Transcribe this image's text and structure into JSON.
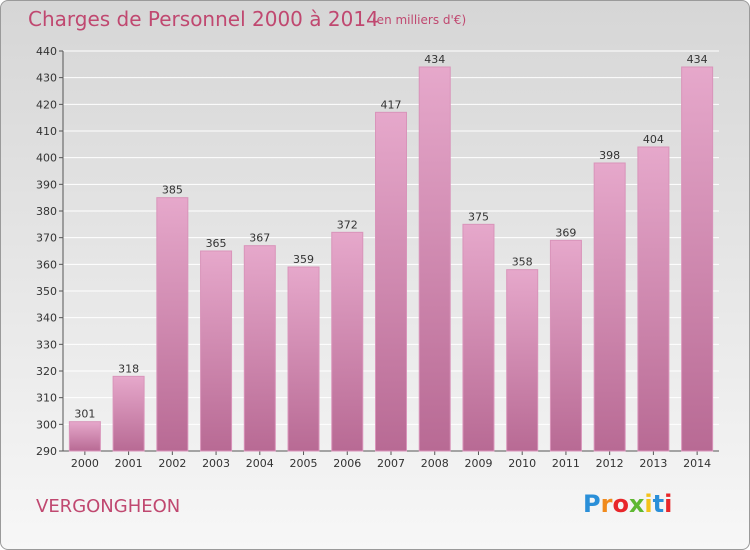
{
  "title": "Charges de Personnel 2000 à 2014",
  "subtitle": "(en milliers d'€)",
  "commune": "VERGONGHEON",
  "logo": {
    "text": "Proxiti",
    "letters": [
      "P",
      "r",
      "o",
      "x",
      "i",
      "t",
      "i"
    ],
    "colors": [
      "#2a8fd8",
      "#f08a1c",
      "#e8262a",
      "#5fb832",
      "#f4c21a",
      "#2a8fd8",
      "#e8262a"
    ]
  },
  "colors": {
    "bar": "#d78eb4",
    "bar_light": "#e6a8cb",
    "bar_dark": "#b86a94",
    "title": "#c04870",
    "grid": "#ffffff",
    "text": "#333333"
  },
  "chart_data": {
    "type": "bar",
    "categories": [
      "2000",
      "2001",
      "2002",
      "2003",
      "2004",
      "2005",
      "2006",
      "2007",
      "2008",
      "2009",
      "2010",
      "2011",
      "2012",
      "2013",
      "2014"
    ],
    "values": [
      301,
      318,
      385,
      365,
      367,
      359,
      372,
      417,
      434,
      375,
      358,
      369,
      398,
      404,
      434
    ],
    "ylim": [
      290,
      440
    ],
    "yticks": [
      290,
      300,
      310,
      320,
      330,
      340,
      350,
      360,
      370,
      380,
      390,
      400,
      410,
      420,
      430,
      440
    ],
    "grid": true,
    "legend": "none"
  }
}
